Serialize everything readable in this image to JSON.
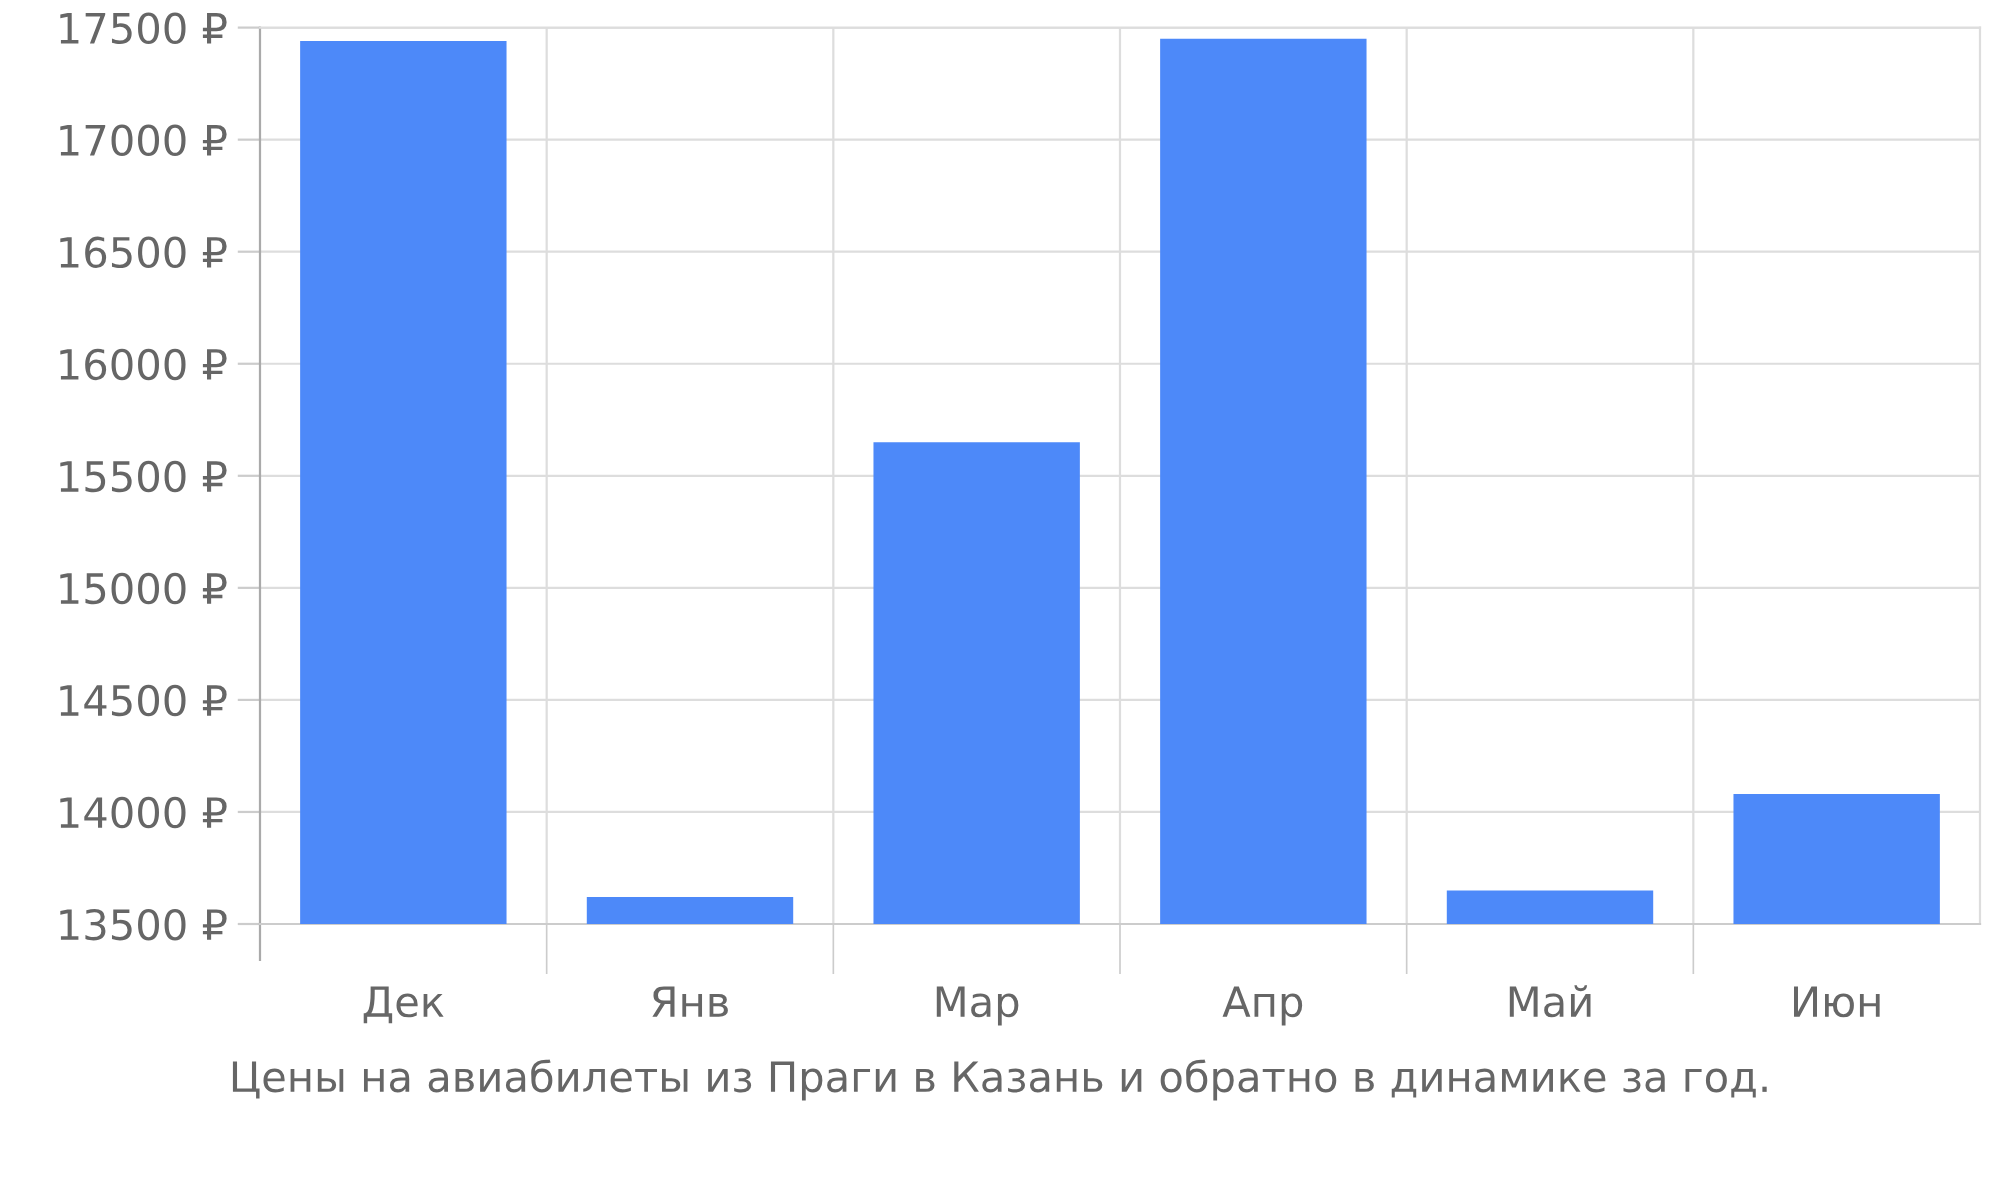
{
  "chart_data": {
    "type": "bar",
    "categories": [
      "Дек",
      "Янв",
      "Мар",
      "Апр",
      "Май",
      "Июн"
    ],
    "values": [
      17440,
      13620,
      15650,
      17450,
      13650,
      14080
    ],
    "color": "#4d89f9",
    "ylim": [
      13500,
      17500
    ],
    "yticks": [
      {
        "value": 13500,
        "label": "13500 ₽"
      },
      {
        "value": 14000,
        "label": "14000 ₽"
      },
      {
        "value": 14500,
        "label": "14500 ₽"
      },
      {
        "value": 15000,
        "label": "15000 ₽"
      },
      {
        "value": 15500,
        "label": "15500 ₽"
      },
      {
        "value": 16000,
        "label": "16000 ₽"
      },
      {
        "value": 16500,
        "label": "16500 ₽"
      },
      {
        "value": 17000,
        "label": "17000 ₽"
      },
      {
        "value": 17500,
        "label": "17500 ₽"
      }
    ],
    "grid": true,
    "annotations": [
      "Цены на авиабилеты из Праги в Казань и обратно в динамике за год."
    ]
  }
}
